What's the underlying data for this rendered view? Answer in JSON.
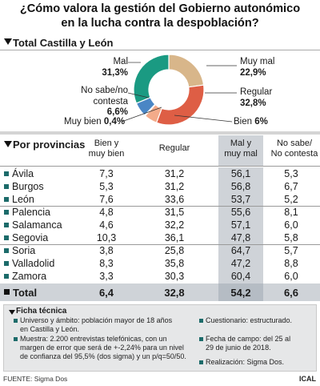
{
  "title_line1": "¿Cómo valora la gestión del Gobierno autonómico",
  "title_line2": "en la lucha contra la despoblación?",
  "total_section_title": "Total Castilla y León",
  "pie_labels": {
    "mal": "Mal",
    "mal_v": "31,3%",
    "nosabe": "No sabe/no contesta",
    "nosabe_v": "6,6%",
    "muybien": "Muy bien",
    "muybien_v": "0,4%",
    "muymal": "Muy mal",
    "muymal_v": "22,9%",
    "regular": "Regular",
    "regular_v": "32,8%",
    "bien": "Bien",
    "bien_v": "6%"
  },
  "provinces_section_title": "Por provincias",
  "col_headers": {
    "c1a": "Bien y",
    "c1b": "muy bien",
    "c2": "Regular",
    "c3a": "Mal y",
    "c3b": "muy mal",
    "c4a": "No sabe/",
    "c4b": "No contesta"
  },
  "table_rows": [
    {
      "name": "Ávila",
      "c1": "7,3",
      "c2": "31,2",
      "c3": "56,1",
      "c4": "5,3"
    },
    {
      "name": "Burgos",
      "c1": "5,3",
      "c2": "31,2",
      "c3": "56,8",
      "c4": "6,7"
    },
    {
      "name": "León",
      "c1": "7,6",
      "c2": "33,6",
      "c3": "53,7",
      "c4": "5,2"
    },
    {
      "name": "Palencia",
      "c1": "4,8",
      "c2": "31,5",
      "c3": "55,6",
      "c4": "8,1"
    },
    {
      "name": "Salamanca",
      "c1": "4,6",
      "c2": "32,2",
      "c3": "57,1",
      "c4": "6,0"
    },
    {
      "name": "Segovia",
      "c1": "10,3",
      "c2": "36,1",
      "c3": "47,8",
      "c4": "5,8"
    },
    {
      "name": "Soria",
      "c1": "3,8",
      "c2": "25,8",
      "c3": "64,7",
      "c4": "5,7"
    },
    {
      "name": "Valladolid",
      "c1": "8,3",
      "c2": "35,8",
      "c3": "47,2",
      "c4": "8,8"
    },
    {
      "name": "Zamora",
      "c1": "3,3",
      "c2": "30,3",
      "c3": "60,4",
      "c4": "6,0"
    }
  ],
  "total_row": {
    "name": "Total",
    "c1": "6,4",
    "c2": "32,8",
    "c3": "54,2",
    "c4": "6,6"
  },
  "ficha": {
    "head": "Ficha técnica",
    "item1": "Universo y ámbito: población mayor de 18 años en Castilla y León.",
    "item2": "Muestra: 2.200 entrevistas telefónicas, con un margen de error que será de +-2,24% para un nivel de confianza del 95,5% (dos sigma) y un p/q=50/50.",
    "item3": "Cuestionario: estructurado.",
    "item4": "Fecha de campo: del 25 al 29 de junio de 2018.",
    "item5": "Realización: Sigma Dos."
  },
  "footer_source": "FUENTE: Sigma Dos",
  "footer_credit": "ICAL",
  "colors": {
    "muy_mal": "#d8b68a",
    "regular": "#de5e45",
    "bien": "#f3ab8a",
    "muy_bien": "#7fb0d7",
    "nosabe": "#4a86c5",
    "mal": "#1a9a82",
    "square": "#1c6b6a",
    "highlight": "#cfd3d8"
  },
  "chart_data": [
    {
      "type": "pie",
      "variant": "donut",
      "title": "Total Castilla y León",
      "categories": [
        "Muy mal",
        "Regular",
        "Bien",
        "Muy bien",
        "No sabe/no contesta",
        "Mal"
      ],
      "values": [
        22.9,
        32.8,
        6.0,
        0.4,
        6.6,
        31.3
      ],
      "unit": "%"
    },
    {
      "type": "table",
      "title": "Por provincias",
      "columns": [
        "Bien y muy bien",
        "Regular",
        "Mal y muy mal",
        "No sabe/ No contesta"
      ],
      "rows": [
        "Ávila",
        "Burgos",
        "León",
        "Palencia",
        "Salamanca",
        "Segovia",
        "Soria",
        "Valladolid",
        "Zamora",
        "Total"
      ],
      "values": [
        [
          7.3,
          31.2,
          56.1,
          5.3
        ],
        [
          5.3,
          31.2,
          56.8,
          6.7
        ],
        [
          7.6,
          33.6,
          53.7,
          5.2
        ],
        [
          4.8,
          31.5,
          55.6,
          8.1
        ],
        [
          4.6,
          32.2,
          57.1,
          6.0
        ],
        [
          10.3,
          36.1,
          47.8,
          5.8
        ],
        [
          3.8,
          25.8,
          64.7,
          5.7
        ],
        [
          8.3,
          35.8,
          47.2,
          8.8
        ],
        [
          3.3,
          30.3,
          60.4,
          6.0
        ],
        [
          6.4,
          32.8,
          54.2,
          6.6
        ]
      ]
    }
  ]
}
